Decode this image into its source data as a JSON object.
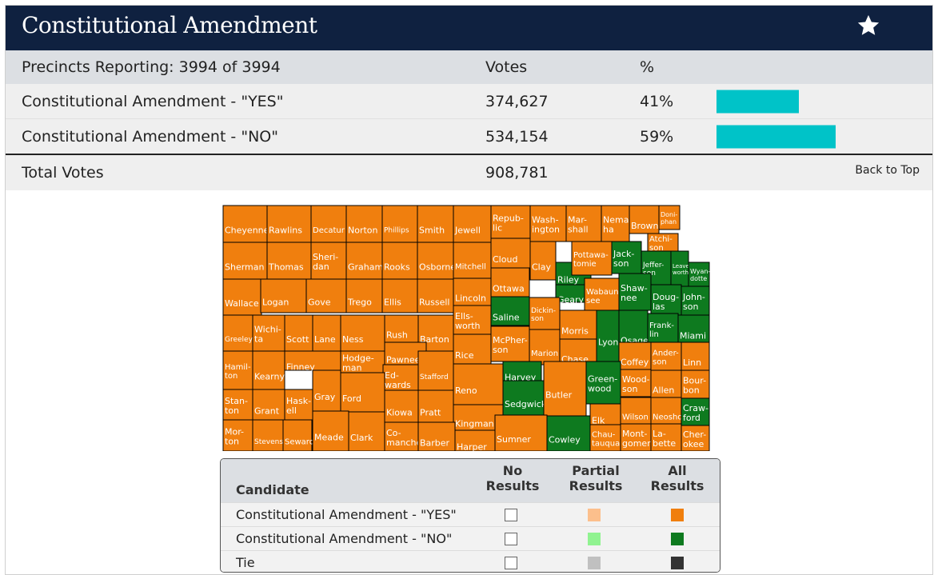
{
  "header": {
    "title": "Constitutional Amendment",
    "favorite_icon": "star-icon"
  },
  "results": {
    "precincts_label": "Precincts Reporting: 3994 of 3994",
    "votes_header": "Votes",
    "pct_header": "%",
    "rows": [
      {
        "name": "Constitutional Amendment - \"YES\"",
        "votes": "374,627",
        "pct_text": "41%",
        "pct": 0.41
      },
      {
        "name": "Constitutional Amendment - \"NO\"",
        "votes": "534,154",
        "pct_text": "59%",
        "pct": 0.59
      }
    ],
    "total_label": "Total Votes",
    "total_votes": "908,781",
    "back_to_top": "Back to Top",
    "bar_color": "#00c3c8"
  },
  "map": {
    "colors": {
      "yes": "#f07f0e",
      "no": "#0e7a1f"
    },
    "counties": [
      {
        "name": "Cheyenne",
        "r": "yes"
      },
      {
        "name": "Rawlins",
        "r": "yes"
      },
      {
        "name": "Decatur",
        "r": "yes"
      },
      {
        "name": "Norton",
        "r": "yes"
      },
      {
        "name": "Phillips",
        "r": "yes"
      },
      {
        "name": "Smith",
        "r": "yes"
      },
      {
        "name": "Jewell",
        "r": "yes"
      },
      {
        "name": "Repub-lic",
        "r": "yes"
      },
      {
        "name": "Wash-ington",
        "r": "yes"
      },
      {
        "name": "Mar-shall",
        "r": "yes"
      },
      {
        "name": "Nema-ha",
        "r": "yes"
      },
      {
        "name": "Brown",
        "r": "yes"
      },
      {
        "name": "Doni-phan",
        "r": "yes"
      },
      {
        "name": "Atchi-son",
        "r": "yes"
      },
      {
        "name": "Sherman",
        "r": "yes"
      },
      {
        "name": "Thomas",
        "r": "yes"
      },
      {
        "name": "Sheri-dan",
        "r": "yes"
      },
      {
        "name": "Graham",
        "r": "yes"
      },
      {
        "name": "Rooks",
        "r": "yes"
      },
      {
        "name": "Osborne",
        "r": "yes"
      },
      {
        "name": "Mitchell",
        "r": "yes"
      },
      {
        "name": "Cloud",
        "r": "yes"
      },
      {
        "name": "Clay",
        "r": "yes"
      },
      {
        "name": "Riley",
        "r": "no"
      },
      {
        "name": "Pottawa-tomie",
        "r": "yes"
      },
      {
        "name": "Jack-son",
        "r": "no"
      },
      {
        "name": "Jeffer-son",
        "r": "no"
      },
      {
        "name": "Leaven-worth",
        "r": "no"
      },
      {
        "name": "Wyan-dotte",
        "r": "no"
      },
      {
        "name": "Wallace",
        "r": "yes"
      },
      {
        "name": "Logan",
        "r": "yes"
      },
      {
        "name": "Gove",
        "r": "yes"
      },
      {
        "name": "Trego",
        "r": "yes"
      },
      {
        "name": "Ellis",
        "r": "yes"
      },
      {
        "name": "Russell",
        "r": "yes"
      },
      {
        "name": "Lincoln",
        "r": "yes"
      },
      {
        "name": "Ottawa",
        "r": "yes"
      },
      {
        "name": "Geary",
        "r": "no"
      },
      {
        "name": "Wabaun-see",
        "r": "yes"
      },
      {
        "name": "Shaw-nee",
        "r": "no"
      },
      {
        "name": "Doug-las",
        "r": "no"
      },
      {
        "name": "John-son",
        "r": "no"
      },
      {
        "name": "Ells-worth",
        "r": "yes"
      },
      {
        "name": "Saline",
        "r": "no"
      },
      {
        "name": "Dickin-son",
        "r": "yes"
      },
      {
        "name": "Morris",
        "r": "yes"
      },
      {
        "name": "Osage",
        "r": "no"
      },
      {
        "name": "Frank-lin",
        "r": "no"
      },
      {
        "name": "Miami",
        "r": "no"
      },
      {
        "name": "Greeley",
        "r": "yes"
      },
      {
        "name": "Wichi-ta",
        "r": "yes"
      },
      {
        "name": "Scott",
        "r": "yes"
      },
      {
        "name": "Lane",
        "r": "yes"
      },
      {
        "name": "Ness",
        "r": "yes"
      },
      {
        "name": "Rush",
        "r": "yes"
      },
      {
        "name": "Barton",
        "r": "yes"
      },
      {
        "name": "Rice",
        "r": "yes"
      },
      {
        "name": "McPher-son",
        "r": "yes"
      },
      {
        "name": "Marion",
        "r": "yes"
      },
      {
        "name": "Chase",
        "r": "yes"
      },
      {
        "name": "Lyon",
        "r": "no"
      },
      {
        "name": "Coffey",
        "r": "yes"
      },
      {
        "name": "Ander-son",
        "r": "yes"
      },
      {
        "name": "Linn",
        "r": "yes"
      },
      {
        "name": "Hamil-ton",
        "r": "yes"
      },
      {
        "name": "Kearny",
        "r": "yes"
      },
      {
        "name": "Finney",
        "r": "yes"
      },
      {
        "name": "Hodge-man",
        "r": "yes"
      },
      {
        "name": "Pawnee",
        "r": "yes"
      },
      {
        "name": "Ed-wards",
        "r": "yes"
      },
      {
        "name": "Stafford",
        "r": "yes"
      },
      {
        "name": "Reno",
        "r": "yes"
      },
      {
        "name": "Harvey",
        "r": "no"
      },
      {
        "name": "Green-wood",
        "r": "no"
      },
      {
        "name": "Wood-son",
        "r": "yes"
      },
      {
        "name": "Allen",
        "r": "yes"
      },
      {
        "name": "Bour-bon",
        "r": "yes"
      },
      {
        "name": "Stan-ton",
        "r": "yes"
      },
      {
        "name": "Grant",
        "r": "yes"
      },
      {
        "name": "Hask-ell",
        "r": "yes"
      },
      {
        "name": "Gray",
        "r": "yes"
      },
      {
        "name": "Ford",
        "r": "yes"
      },
      {
        "name": "Kiowa",
        "r": "yes"
      },
      {
        "name": "Pratt",
        "r": "yes"
      },
      {
        "name": "Kingman",
        "r": "yes"
      },
      {
        "name": "Sedgwick",
        "r": "no"
      },
      {
        "name": "Butler",
        "r": "yes"
      },
      {
        "name": "Elk",
        "r": "yes"
      },
      {
        "name": "Wilson",
        "r": "yes"
      },
      {
        "name": "Neosho",
        "r": "yes"
      },
      {
        "name": "Craw-ford",
        "r": "no"
      },
      {
        "name": "Mor-ton",
        "r": "yes"
      },
      {
        "name": "Stevens",
        "r": "yes"
      },
      {
        "name": "Seward",
        "r": "yes"
      },
      {
        "name": "Meade",
        "r": "yes"
      },
      {
        "name": "Clark",
        "r": "yes"
      },
      {
        "name": "Co-manche",
        "r": "yes"
      },
      {
        "name": "Barber",
        "r": "yes"
      },
      {
        "name": "Harper",
        "r": "yes"
      },
      {
        "name": "Sumner",
        "r": "yes"
      },
      {
        "name": "Cowley",
        "r": "no"
      },
      {
        "name": "Chau-tauqua",
        "r": "yes"
      },
      {
        "name": "Mont-gomery",
        "r": "yes"
      },
      {
        "name": "La-bette",
        "r": "yes"
      },
      {
        "name": "Cher-okee",
        "r": "yes"
      }
    ]
  },
  "legend": {
    "candidate_header": "Candidate",
    "columns": [
      {
        "line1": "No",
        "line2": "Results"
      },
      {
        "line1": "Partial",
        "line2": "Results"
      },
      {
        "line1": "All",
        "line2": "Results"
      }
    ],
    "rows": [
      {
        "label": "Constitutional Amendment - \"YES\"",
        "partial_color": "#fcbf8c",
        "all_color": "#f07f0e"
      },
      {
        "label": "Constitutional Amendment - \"NO\"",
        "partial_color": "#90f390",
        "all_color": "#0e7a1f"
      },
      {
        "label": "Tie",
        "partial_color": "#c0c0c0",
        "all_color": "#333333"
      }
    ]
  }
}
